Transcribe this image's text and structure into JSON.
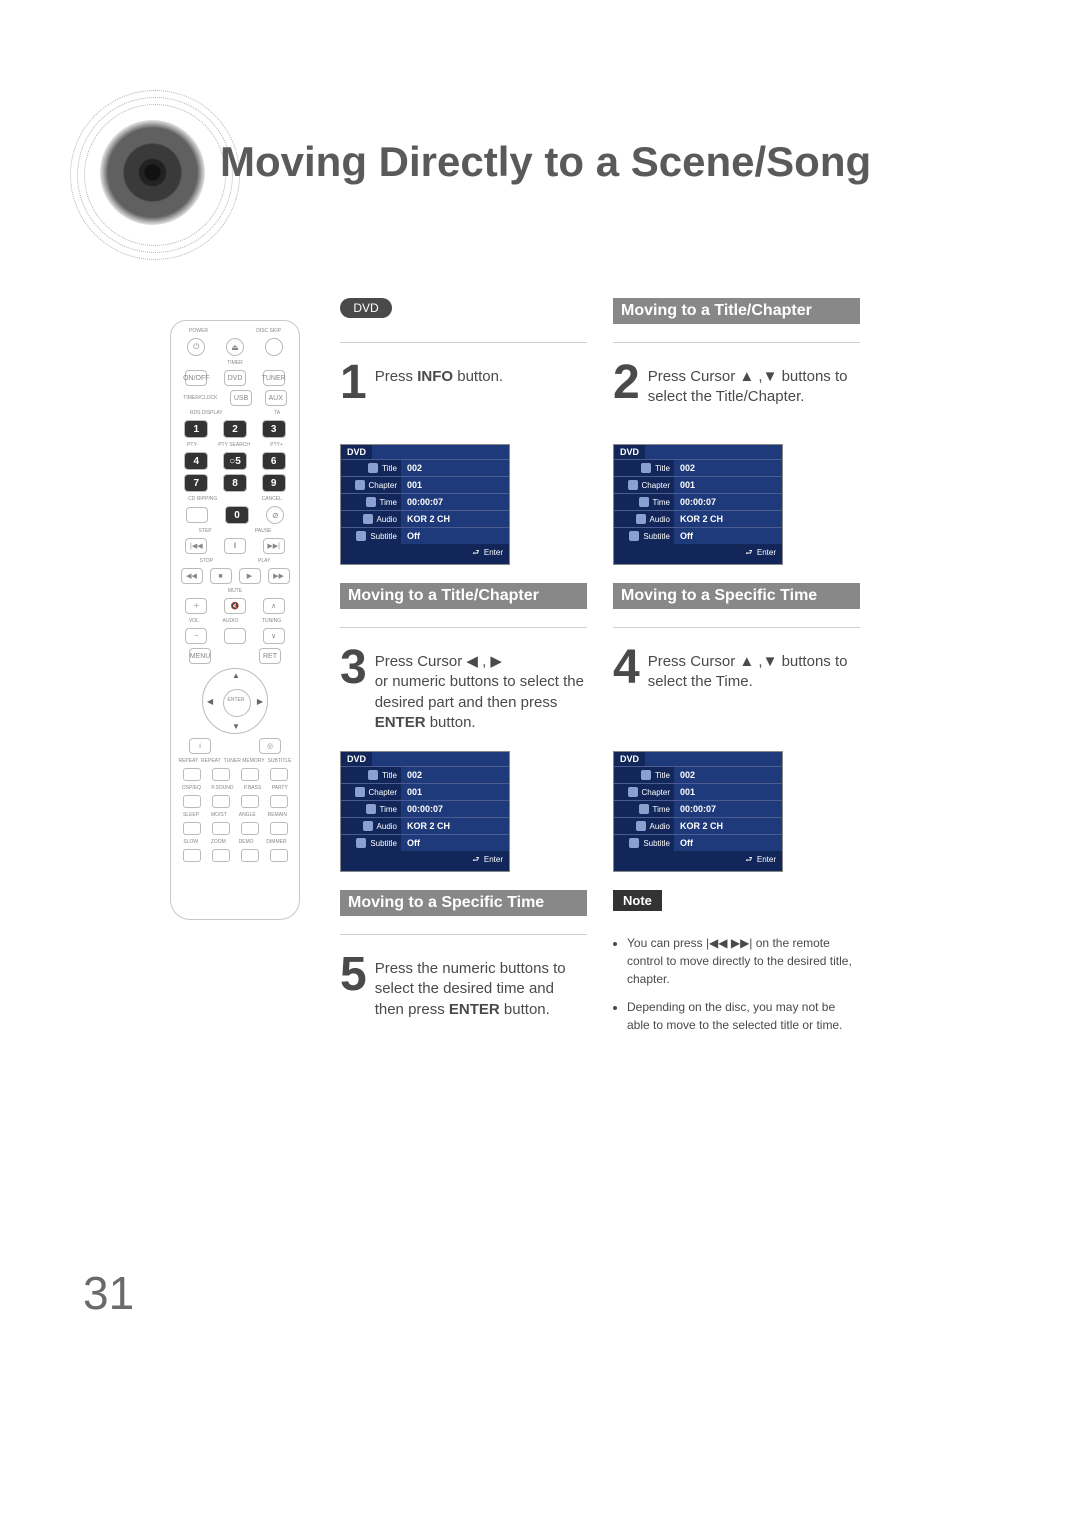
{
  "page_title": "Moving Directly to a Scene/Song",
  "page_number": "31",
  "dvd_label": "DVD",
  "remote": {
    "top_label": "POWER",
    "disc_skip": "DISC SKIP"
  },
  "steps": {
    "1": {
      "num": "1",
      "pre": "Press ",
      "bold": "INFO",
      "post": " button."
    },
    "2": {
      "num": "2",
      "header": "Moving to a Title/Chapter",
      "text": "Press Cursor ▲ ,▼ buttons to select the Title/Chapter."
    },
    "3": {
      "num": "3",
      "header": "Moving to a Title/Chapter",
      "line1": "Press Cursor ◀ , ▶",
      "line2": "or numeric buttons to select the desired part and then press ",
      "bold": "ENTER",
      "post": " button."
    },
    "4": {
      "num": "4",
      "header": "Moving to a Specific Time",
      "text": "Press Cursor ▲ ,▼ buttons to select the Time."
    },
    "5": {
      "num": "5",
      "header": "Moving to a Specific Time",
      "pre": "Press the numeric buttons to select the desired time and then press ",
      "bold": "ENTER",
      "post": " button."
    }
  },
  "osd": {
    "title": "DVD",
    "rows": [
      {
        "label": "Title",
        "value": "002"
      },
      {
        "label": "Chapter",
        "value": "001"
      },
      {
        "label": "Time",
        "value": "00:00:07"
      },
      {
        "label": "Audio",
        "value": "KOR 2 CH"
      },
      {
        "label": "Subtitle",
        "value": "Off"
      }
    ],
    "foot": "Enter"
  },
  "note": {
    "label": "Note",
    "bullets": [
      "You can press  |◀◀ ▶▶|  on the remote control to move directly to the desired title, chapter.",
      "Depending on the disc, you may not be able to move to the selected title or time."
    ]
  },
  "colors": {
    "header_bg": "#888888",
    "osd_bg": "#1f3a7a",
    "osd_dark": "#12265a",
    "note_bg": "#333333"
  }
}
